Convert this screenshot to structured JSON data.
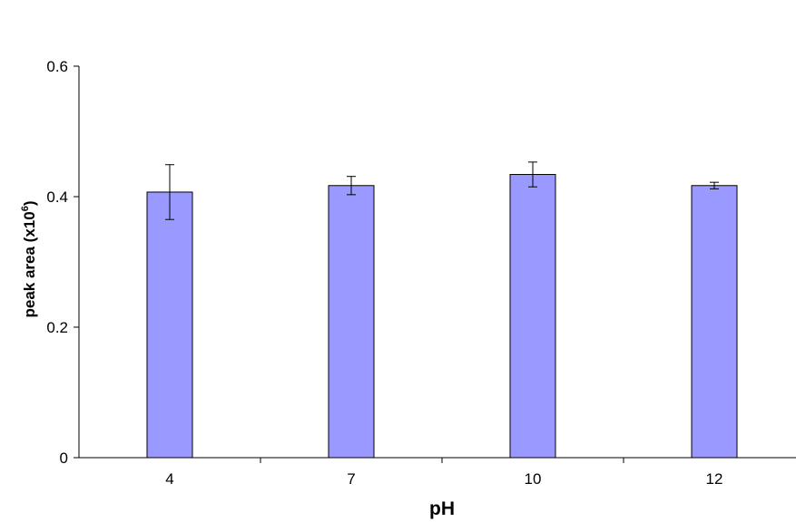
{
  "chart_data": {
    "type": "bar",
    "categories": [
      "4",
      "7",
      "10",
      "12"
    ],
    "values": [
      0.407,
      0.417,
      0.434,
      0.417
    ],
    "error": [
      0.042,
      0.014,
      0.019,
      0.005
    ],
    "ylim": [
      0,
      0.6
    ],
    "yticks": [
      0,
      0.2,
      0.4,
      0.6
    ],
    "ytick_labels": [
      "0",
      "0.2",
      "0.4",
      "0.6"
    ],
    "xlabel": "pH",
    "ylabel": {
      "base": "peak area (x10",
      "superscript": "6",
      "suffix": ")"
    },
    "grid": false,
    "legend": "none",
    "colors": {
      "bar_fill": "#9999ff",
      "bar_stroke": "#000000",
      "axis": "#000000",
      "error_bar": "#000000"
    }
  }
}
